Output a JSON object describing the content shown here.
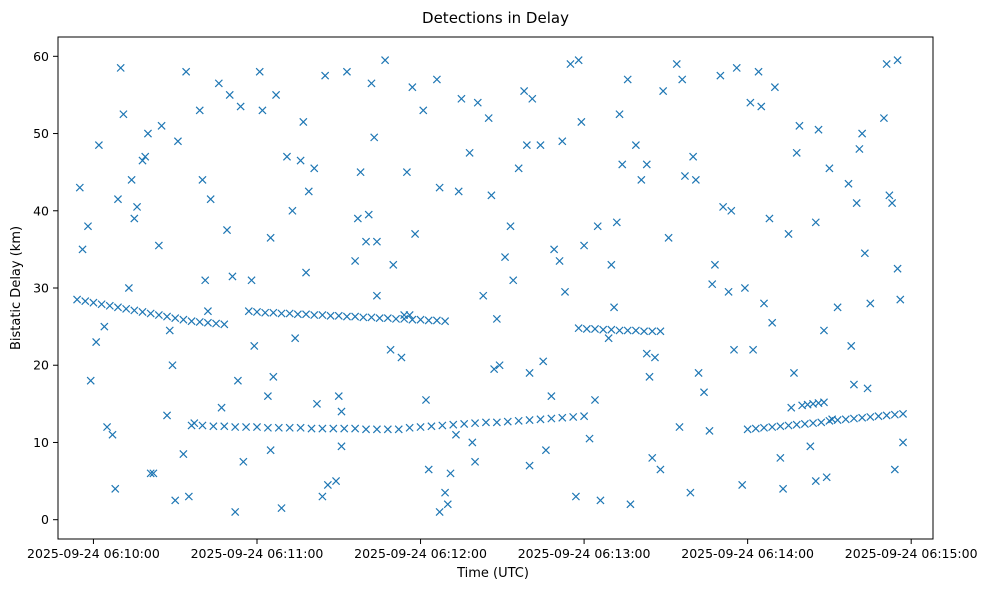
{
  "chart_data": {
    "type": "scatter",
    "title": "Detections in Delay",
    "xlabel": "Time (UTC)",
    "ylabel": "Bistatic Delay (km)",
    "xlim": [
      "2025-09-24 06:09:47",
      "2025-09-24 06:15:08"
    ],
    "ylim": [
      -2.5,
      62.5
    ],
    "x_tick_labels": [
      "2025-09-24 06:10:00",
      "2025-09-24 06:11:00",
      "2025-09-24 06:12:00",
      "2025-09-24 06:13:00",
      "2025-09-24 06:14:00",
      "2025-09-24 06:15:00"
    ],
    "y_tick_labels": [
      "0",
      "10",
      "20",
      "30",
      "40",
      "50",
      "60"
    ],
    "marker": "x",
    "marker_color": "#1f77b4",
    "grid": false,
    "legend": "none",
    "series": [
      {
        "note_tracks": "estimated from image",
        "x": [
          "06:09:54",
          "06:09:57",
          "06:10:00",
          "06:10:03",
          "06:10:06",
          "06:10:09",
          "06:10:12",
          "06:10:15",
          "06:10:18",
          "06:10:21",
          "06:10:24",
          "06:10:27",
          "06:10:30",
          "06:10:33",
          "06:10:36",
          "06:10:39",
          "06:10:42",
          "06:10:45",
          "06:10:48",
          "06:10:36",
          "06:10:40",
          "06:10:44",
          "06:10:48",
          "06:10:52",
          "06:10:56",
          "06:11:00",
          "06:11:04",
          "06:11:08",
          "06:11:12",
          "06:11:16",
          "06:11:20",
          "06:11:24",
          "06:11:28",
          "06:11:32",
          "06:11:36",
          "06:11:40",
          "06:11:44",
          "06:11:48",
          "06:11:52",
          "06:11:56",
          "06:12:00",
          "06:12:04",
          "06:12:08",
          "06:12:12",
          "06:12:16",
          "06:12:20",
          "06:12:24",
          "06:12:28",
          "06:12:32",
          "06:12:36",
          "06:12:40",
          "06:12:44",
          "06:12:48",
          "06:12:52",
          "06:12:56",
          "06:13:00",
          "06:10:57",
          "06:11:00",
          "06:11:03",
          "06:11:06",
          "06:11:09",
          "06:11:12",
          "06:11:15",
          "06:11:18",
          "06:11:21",
          "06:11:24",
          "06:11:27",
          "06:11:30",
          "06:11:33",
          "06:11:36",
          "06:11:39",
          "06:11:42",
          "06:11:45",
          "06:11:48",
          "06:11:51",
          "06:11:54",
          "06:11:57",
          "06:12:00",
          "06:12:03",
          "06:12:06",
          "06:12:09",
          "06:12:58",
          "06:13:01",
          "06:13:04",
          "06:13:07",
          "06:13:10",
          "06:13:13",
          "06:13:16",
          "06:13:19",
          "06:13:22",
          "06:13:25",
          "06:13:28",
          "06:14:00",
          "06:14:03",
          "06:14:06",
          "06:14:09",
          "06:14:12",
          "06:14:15",
          "06:14:18",
          "06:14:21",
          "06:14:24",
          "06:14:27",
          "06:14:30",
          "06:14:33",
          "06:14:36",
          "06:14:39",
          "06:14:42",
          "06:14:45",
          "06:14:48",
          "06:14:51",
          "06:14:54",
          "06:14:57",
          "06:14:20",
          "06:14:22",
          "06:14:24",
          "06:14:26",
          "06:14:28",
          "06:09:55",
          "06:10:10",
          "06:10:20",
          "06:10:35",
          "06:10:50",
          "06:11:05",
          "06:11:25",
          "06:11:40",
          "06:11:55",
          "06:12:10",
          "06:12:25",
          "06:12:40",
          "06:12:55",
          "06:13:10",
          "06:13:25",
          "06:13:40",
          "06:13:55",
          "06:14:10",
          "06:14:25",
          "06:14:40",
          "06:14:55",
          "06:09:58",
          "06:10:05",
          "06:10:14",
          "06:10:22",
          "06:10:31",
          "06:10:41",
          "06:10:53",
          "06:11:02",
          "06:11:13",
          "06:11:22",
          "06:11:33",
          "06:11:44",
          "06:11:58",
          "06:12:07",
          "06:12:18",
          "06:12:29",
          "06:12:38",
          "06:12:49",
          "06:13:02",
          "06:13:14",
          "06:13:23",
          "06:13:36",
          "06:13:47",
          "06:13:58",
          "06:14:08",
          "06:14:19",
          "06:14:33",
          "06:14:44",
          "06:14:52",
          "06:10:01",
          "06:10:11",
          "06:10:24",
          "06:10:33",
          "06:10:46",
          "06:10:59",
          "06:11:09",
          "06:11:21",
          "06:11:36",
          "06:11:47",
          "06:12:03",
          "06:12:14",
          "06:12:27",
          "06:12:41",
          "06:12:53",
          "06:13:06",
          "06:13:19",
          "06:13:31",
          "06:13:44",
          "06:13:56",
          "06:14:09",
          "06:14:23",
          "06:14:37",
          "06:14:50",
          "06:09:56",
          "06:10:08",
          "06:10:19",
          "06:10:29",
          "06:10:43",
          "06:10:55",
          "06:11:07",
          "06:11:18",
          "06:11:31",
          "06:11:43",
          "06:11:56",
          "06:12:09",
          "06:12:21",
          "06:12:34",
          "06:12:46",
          "06:12:59",
          "06:13:12",
          "06:13:24",
          "06:13:37",
          "06:13:50",
          "06:14:02",
          "06:14:15",
          "06:14:29",
          "06:14:41",
          "06:14:56",
          "06:10:04",
          "06:10:16",
          "06:10:27",
          "06:10:39",
          "06:10:51",
          "06:11:04",
          "06:11:16",
          "06:11:29",
          "06:11:41",
          "06:11:53",
          "06:12:06",
          "06:12:19",
          "06:12:31",
          "06:12:44",
          "06:12:57",
          "06:13:09",
          "06:13:21",
          "06:13:34",
          "06:13:46",
          "06:13:59",
          "06:14:12",
          "06:14:26",
          "06:14:39",
          "06:14:53",
          "06:09:59",
          "06:10:13",
          "06:10:25",
          "06:10:37",
          "06:10:49",
          "06:11:01",
          "06:11:14",
          "06:11:26",
          "06:11:38",
          "06:11:50",
          "06:12:02",
          "06:12:15",
          "06:12:28",
          "06:12:40",
          "06:12:52",
          "06:13:05",
          "06:13:17",
          "06:13:29",
          "06:13:42",
          "06:13:54",
          "06:14:06",
          "06:14:18",
          "06:14:31",
          "06:14:43",
          "06:14:55",
          "06:10:07",
          "06:10:18",
          "06:10:30",
          "06:10:42",
          "06:10:54",
          "06:11:06",
          "06:11:19",
          "06:11:31",
          "06:11:44",
          "06:11:57",
          "06:12:11",
          "06:12:23",
          "06:12:36",
          "06:12:48",
          "06:13:00",
          "06:13:13",
          "06:13:26",
          "06:13:39",
          "06:13:51",
          "06:14:04",
          "06:14:16",
          "06:14:28",
          "06:14:42",
          "06:14:54",
          "06:10:02",
          "06:10:15",
          "06:10:28",
          "06:10:40",
          "06:10:52",
          "06:11:05",
          "06:11:17",
          "06:11:30",
          "06:11:42",
          "06:11:54",
          "06:12:07",
          "06:12:20",
          "06:12:33",
          "06:12:45",
          "06:12:58",
          "06:13:11",
          "06:13:23",
          "06:13:35",
          "06:13:48",
          "06:14:01",
          "06:14:13",
          "06:14:25",
          "06:14:38",
          "06:14:51",
          "06:10:09",
          "06:10:21",
          "06:10:34",
          "06:10:47",
          "06:10:58",
          "06:11:11",
          "06:11:24",
          "06:11:37",
          "06:11:49",
          "06:12:01",
          "06:12:13",
          "06:12:26",
          "06:12:39",
          "06:12:51",
          "06:13:04",
          "06:13:16",
          "06:13:28",
          "06:13:41",
          "06:13:53",
          "06:14:05",
          "06:14:17",
          "06:14:30",
          "06:14:45",
          "06:14:57"
        ],
        "y": [
          28.5,
          28.3,
          28.1,
          27.9,
          27.7,
          27.5,
          27.3,
          27.1,
          26.9,
          26.7,
          26.5,
          26.3,
          26.1,
          25.9,
          25.7,
          25.6,
          25.5,
          25.4,
          25.3,
          12.2,
          12.2,
          12.1,
          12.1,
          12.0,
          12.0,
          12.0,
          11.9,
          11.9,
          11.9,
          11.9,
          11.8,
          11.8,
          11.8,
          11.8,
          11.8,
          11.7,
          11.7,
          11.7,
          11.7,
          11.9,
          12.0,
          12.1,
          12.2,
          12.3,
          12.4,
          12.5,
          12.6,
          12.6,
          12.7,
          12.8,
          12.9,
          13.0,
          13.1,
          13.2,
          13.3,
          13.4,
          27.0,
          26.9,
          26.8,
          26.8,
          26.7,
          26.7,
          26.6,
          26.6,
          26.5,
          26.5,
          26.4,
          26.4,
          26.3,
          26.3,
          26.2,
          26.2,
          26.1,
          26.1,
          26.0,
          26.0,
          25.9,
          25.9,
          25.8,
          25.8,
          25.7,
          24.8,
          24.7,
          24.7,
          24.6,
          24.6,
          24.5,
          24.5,
          24.5,
          24.4,
          24.4,
          24.4,
          11.7,
          11.8,
          11.9,
          12.0,
          12.1,
          12.2,
          12.3,
          12.4,
          12.5,
          12.6,
          12.8,
          12.9,
          13.0,
          13.1,
          13.2,
          13.3,
          13.4,
          13.5,
          13.6,
          13.7,
          14.8,
          14.9,
          15.0,
          15.1,
          15.2,
          43.0,
          58.5,
          50.0,
          3.0,
          55.0,
          9.0,
          57.5,
          36.0,
          45.0,
          2.0,
          52.0,
          19.0,
          59.0,
          33.0,
          8.0,
          47.0,
          22.0,
          56.0,
          5.0,
          41.0,
          59.5,
          38.0,
          12.0,
          44.0,
          6.0,
          49.0,
          31.0,
          18.0,
          53.0,
          40.0,
          15.0,
          58.0,
          29.0,
          37.0,
          1.0,
          47.5,
          20.0,
          55.5,
          35.0,
          10.5,
          46.0,
          21.5,
          57.0,
          30.5,
          4.5,
          39.0,
          51.0,
          27.5,
          17.0,
          42.0,
          23.0,
          52.5,
          35.5,
          8.5,
          56.5,
          22.5,
          1.5,
          45.5,
          33.5,
          59.5,
          6.5,
          42.5,
          19.5,
          54.5,
          29.5,
          2.5,
          48.5,
          36.5,
          16.5,
          58.5,
          25.5,
          9.5,
          43.5,
          52.0,
          35.0,
          4.0,
          47.0,
          20.0,
          41.5,
          7.5,
          55.0,
          32.0,
          14.0,
          49.5,
          26.5,
          3.5,
          54.0,
          31.0,
          9.0,
          51.5,
          38.5,
          18.5,
          44.5,
          57.5,
          22.0,
          37.0,
          5.5,
          48.0,
          28.5,
          25.0,
          40.5,
          13.5,
          53.0,
          31.5,
          16.0,
          46.5,
          5.0,
          39.5,
          21.0,
          57.0,
          10.0,
          34.0,
          48.5,
          3.0,
          23.5,
          44.0,
          59.0,
          11.5,
          30.0,
          8.0,
          50.5,
          17.5,
          41.0,
          18.0,
          30.0,
          51.0,
          12.5,
          37.5,
          58.0,
          23.5,
          4.5,
          45.0,
          33.0,
          15.5,
          54.5,
          26.0,
          7.0,
          49.0,
          38.0,
          2.0,
          55.5,
          19.0,
          40.0,
          28.0,
          47.5,
          13.0,
          34.5,
          32.5,
          11.0,
          46.5,
          2.5,
          27.0,
          53.5,
          18.5,
          42.5,
          9.5,
          36.0,
          56.0,
          6.0,
          29.0,
          45.5,
          16.0,
          35.5,
          52.5,
          21.0,
          3.5,
          40.5,
          58.0,
          14.5,
          24.5,
          50.0,
          6.5,
          48.5,
          39.0,
          24.5,
          44.0,
          1.0,
          36.5,
          51.5,
          16.0,
          56.5,
          26.5,
          43.0,
          7.5,
          38.0,
          20.5,
          59.5,
          27.5,
          46.0,
          12.0,
          33.0,
          54.0,
          4.0,
          38.5,
          22.5,
          59.0,
          41.5,
          6.0,
          58.0,
          14.5,
          31.0,
          47.0,
          3.0,
          39.0,
          22.0,
          53.0,
          11.0,
          42.0,
          48.5,
          33.5,
          15.5,
          57.0,
          6.5,
          44.0,
          29.5,
          53.5,
          19.0,
          45.5,
          28.0,
          10.0
        ]
      }
    ]
  }
}
